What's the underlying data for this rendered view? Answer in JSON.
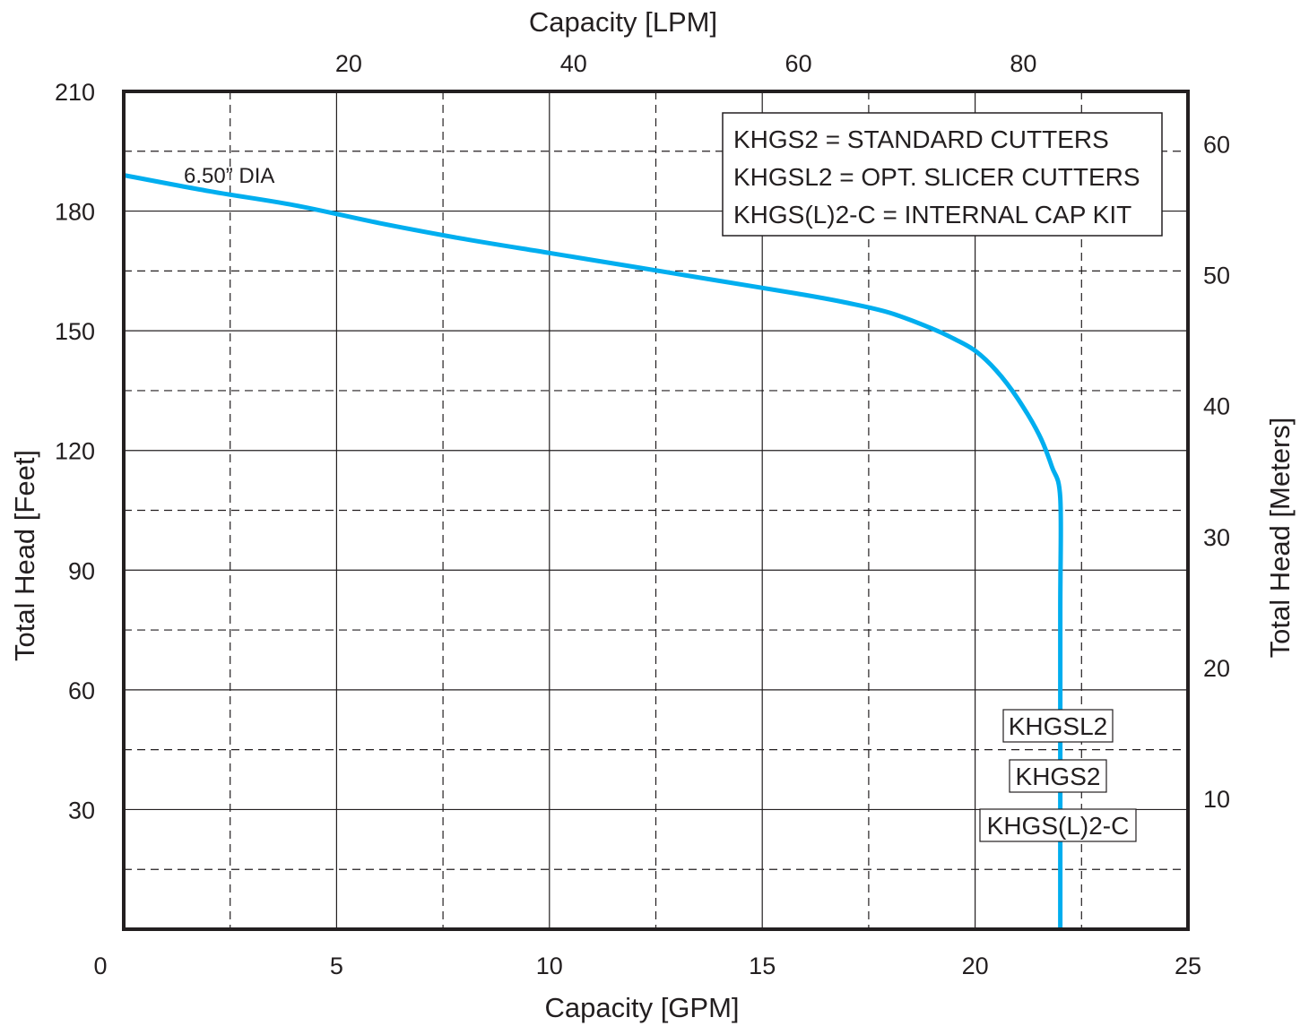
{
  "chart_data": {
    "type": "line",
    "title": "",
    "xlabel": "Capacity [GPM]",
    "ylabel": "Total Head [Feet]",
    "x2label": "Capacity [LPM]",
    "y2label": "Total Head [Meters]",
    "xlim": [
      0,
      25
    ],
    "ylim": [
      0,
      210
    ],
    "x_ticks": [
      "0",
      "5",
      "10",
      "15",
      "20",
      "25"
    ],
    "y_ticks": [
      "30",
      "60",
      "90",
      "120",
      "150",
      "180",
      "210"
    ],
    "x2_ticks": [
      "20",
      "40",
      "60",
      "80"
    ],
    "y2_ticks": [
      "10",
      "20",
      "30",
      "40",
      "50",
      "60"
    ],
    "grid": true,
    "legend_position": "top-right",
    "legend": [
      "KHGS2 = STANDARD CUTTERS",
      "KHGSL2 =  OPT. SLICER CUTTERS",
      "KHGS(L)2-C = INTERNAL CAP KIT"
    ],
    "series": [
      {
        "name": "6.50” DIA",
        "color": "#00aeef",
        "x": [
          0,
          2,
          4,
          6,
          8,
          10,
          12,
          14,
          16,
          17,
          18,
          19,
          19.5,
          20,
          20.5,
          21,
          21.5,
          21.8,
          22,
          22,
          22,
          22
        ],
        "y": [
          189,
          185,
          181.5,
          177,
          173,
          169.5,
          166,
          162.5,
          159,
          157,
          154.5,
          150.5,
          148,
          145,
          140,
          133,
          124,
          116,
          108,
          80,
          30,
          0
        ]
      }
    ],
    "markers": [
      "KHGSL2",
      "KHGS2",
      "KHGS(L)2-C"
    ]
  }
}
